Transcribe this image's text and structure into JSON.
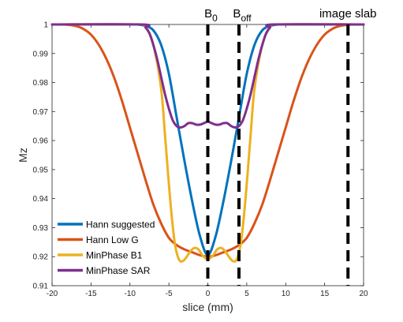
{
  "chart_data": {
    "type": "line",
    "title": "",
    "xlabel": "slice (mm)",
    "ylabel": "Mz",
    "xlim": [
      -20,
      20
    ],
    "ylim": [
      0.91,
      1.0
    ],
    "xticks": [
      -20,
      -15,
      -10,
      -5,
      0,
      5,
      10,
      15,
      20
    ],
    "xtick_labels": [
      "-20",
      "-15",
      "-10",
      "-5",
      "0",
      "5",
      "10",
      "15",
      "20"
    ],
    "yticks": [
      0.91,
      0.92,
      0.93,
      0.94,
      0.95,
      0.96,
      0.97,
      0.98,
      0.99,
      1.0
    ],
    "ytick_labels": [
      "0.91",
      "0.92",
      "0.93",
      "0.94",
      "0.95",
      "0.96",
      "0.97",
      "0.98",
      "0.99",
      "1"
    ],
    "grid": false,
    "legend_position": "bottom-left",
    "series": [
      {
        "name": "Hann suggested",
        "color": "#0072BD",
        "x": [
          -20,
          -10,
          -9,
          -8,
          -7,
          -6,
          -5,
          -4,
          -3,
          -2,
          -1,
          0,
          1,
          2,
          3,
          4,
          5,
          6,
          7,
          8,
          9,
          10,
          20
        ],
        "y": [
          1.0,
          1.0,
          1.0,
          0.9995,
          0.998,
          0.993,
          0.983,
          0.968,
          0.953,
          0.939,
          0.927,
          0.9205,
          0.927,
          0.939,
          0.953,
          0.968,
          0.983,
          0.993,
          0.998,
          0.9995,
          1.0,
          1.0,
          1.0
        ]
      },
      {
        "name": "Hann Low G",
        "color": "#D95319",
        "x": [
          -20,
          -19,
          -18,
          -17,
          -16,
          -15,
          -14,
          -13,
          -12,
          -11,
          -10,
          -9,
          -8,
          -7,
          -6,
          -5,
          -4,
          -3,
          -2,
          -1,
          0,
          1,
          2,
          3,
          4,
          5,
          6,
          7,
          8,
          9,
          10,
          11,
          12,
          13,
          14,
          15,
          16,
          17,
          18,
          19,
          20
        ],
        "y": [
          1.0,
          1.0,
          0.9999,
          0.9995,
          0.9985,
          0.9965,
          0.993,
          0.988,
          0.9815,
          0.9735,
          0.9645,
          0.9555,
          0.9465,
          0.938,
          0.9315,
          0.9265,
          0.924,
          0.9225,
          0.9215,
          0.9205,
          0.92,
          0.9205,
          0.9215,
          0.9225,
          0.924,
          0.9265,
          0.9315,
          0.938,
          0.9465,
          0.9555,
          0.9645,
          0.9735,
          0.9815,
          0.988,
          0.993,
          0.9965,
          0.9985,
          0.9995,
          0.9999,
          1.0,
          1.0
        ]
      },
      {
        "name": "MinPhase B1",
        "color": "#EDB120",
        "x": [
          -20,
          -9,
          -8,
          -7,
          -6,
          -5.5,
          -5,
          -4.6,
          -4.2,
          -3.7,
          -3.2,
          -2.7,
          -2.2,
          -1.7,
          -1.2,
          -0.7,
          -0.3,
          0,
          0.3,
          0.7,
          1.2,
          1.7,
          2.2,
          2.7,
          3.2,
          3.7,
          4.2,
          4.6,
          5,
          5.5,
          6,
          7,
          8,
          9,
          20
        ],
        "y": [
          1.0,
          1.0,
          0.999,
          0.993,
          0.978,
          0.962,
          0.945,
          0.933,
          0.924,
          0.919,
          0.9185,
          0.92,
          0.922,
          0.923,
          0.9225,
          0.9205,
          0.9195,
          0.919,
          0.9195,
          0.9205,
          0.9225,
          0.923,
          0.922,
          0.92,
          0.9185,
          0.919,
          0.924,
          0.933,
          0.945,
          0.962,
          0.978,
          0.993,
          0.999,
          1.0,
          1.0
        ]
      },
      {
        "name": "MinPhase SAR",
        "color": "#7E2F8E",
        "x": [
          -20,
          -8.5,
          -8,
          -7.5,
          -7,
          -6.5,
          -6,
          -5.5,
          -5,
          -4.5,
          -4,
          -3.5,
          -3,
          -2.5,
          -2,
          -1.5,
          -1,
          -0.5,
          0,
          0.5,
          1,
          1.5,
          2,
          2.5,
          3,
          3.5,
          4,
          4.5,
          5,
          5.5,
          6,
          6.5,
          7,
          7.5,
          8,
          8.5,
          20
        ],
        "y": [
          1.0,
          1.0,
          0.999,
          0.997,
          0.993,
          0.988,
          0.982,
          0.976,
          0.971,
          0.967,
          0.965,
          0.9645,
          0.965,
          0.966,
          0.966,
          0.9655,
          0.9655,
          0.966,
          0.9665,
          0.966,
          0.9655,
          0.9655,
          0.966,
          0.966,
          0.965,
          0.9645,
          0.965,
          0.967,
          0.971,
          0.976,
          0.982,
          0.988,
          0.993,
          0.997,
          0.999,
          1.0,
          1.0
        ]
      }
    ],
    "vlines": [
      {
        "x": 0,
        "label": "B",
        "sub": "0"
      },
      {
        "x": 4,
        "label": "B",
        "sub": "off"
      },
      {
        "x": 18,
        "label": "image slab",
        "sub": ""
      }
    ]
  }
}
